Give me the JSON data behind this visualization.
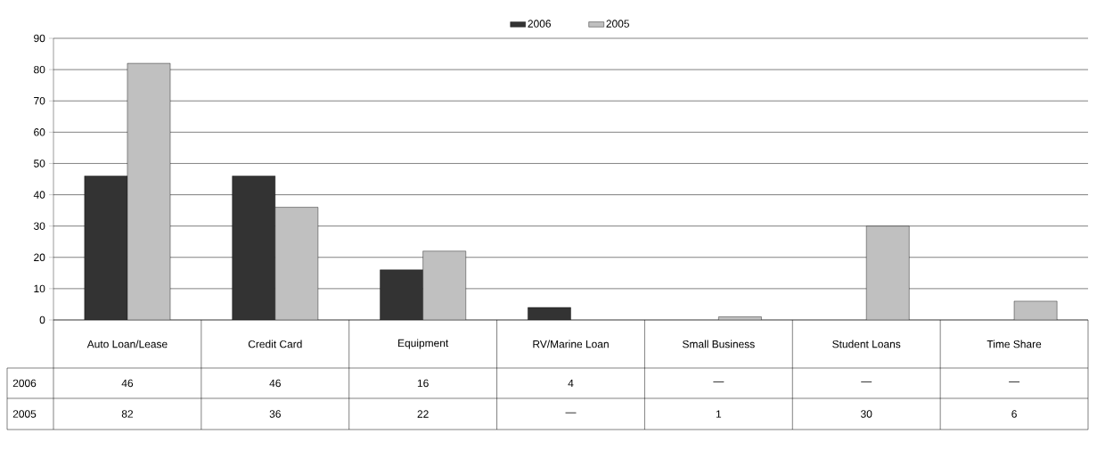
{
  "chart_data": {
    "type": "bar",
    "categories": [
      "Auto Loan/Lease",
      "Credit Card",
      "Equipment",
      "RV/Marine Loan",
      "Small Business",
      "Student Loans",
      "Time Share"
    ],
    "series": [
      {
        "name": "2006",
        "color": "#333333",
        "values": [
          46,
          46,
          16,
          4,
          null,
          null,
          null
        ],
        "value_labels": [
          "46",
          "46",
          "16",
          "4",
          "—",
          "—",
          "—"
        ]
      },
      {
        "name": "2005",
        "color": "#c0c0c0",
        "values": [
          82,
          36,
          22,
          null,
          1,
          30,
          6
        ],
        "value_labels": [
          "82",
          "36",
          "22",
          "—",
          "1",
          "30",
          "6"
        ]
      }
    ],
    "ylim": [
      0,
      90
    ],
    "yticks": [
      0,
      10,
      20,
      30,
      40,
      50,
      60,
      70,
      80,
      90
    ],
    "grid": "y",
    "legend": "top"
  }
}
